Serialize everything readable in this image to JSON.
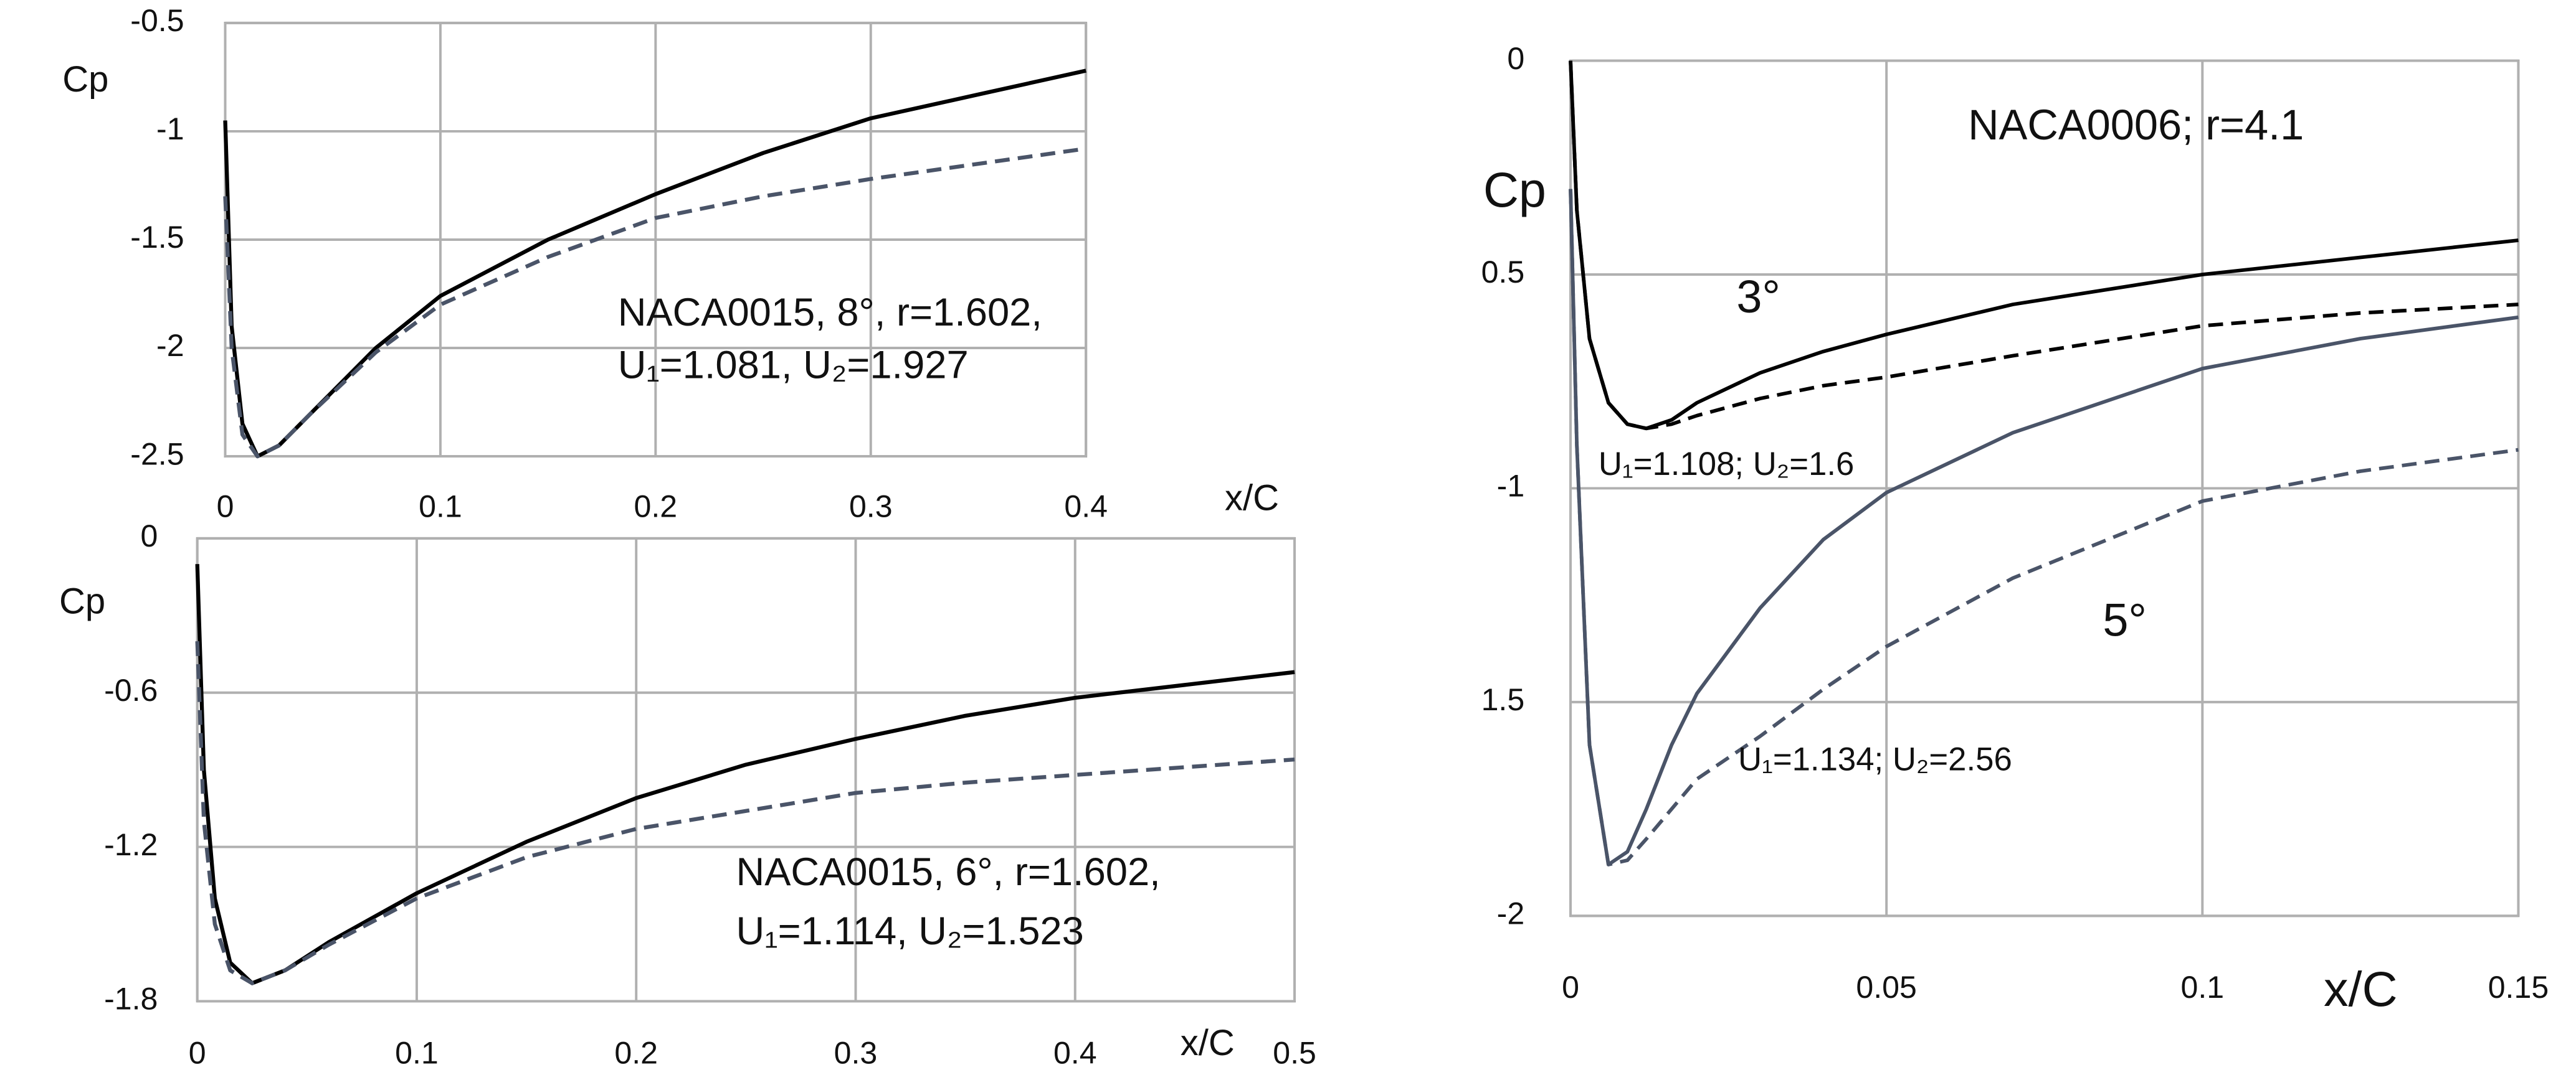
{
  "chart_data": [
    {
      "type": "line",
      "ylabel": "Cp",
      "xlabel": "x/C",
      "xlim": [
        0,
        0.4
      ],
      "xticks": [
        0,
        0.1,
        0.2,
        0.3,
        0.4
      ],
      "ylim": [
        -2.5,
        -0.5
      ],
      "yticks": [
        -2.5,
        -2,
        -1.5,
        -1,
        -0.5
      ],
      "grid": true,
      "annotations": [
        "NACA0015, 8°, r=1.602,",
        "U₁=1.081, U₂=1.927"
      ],
      "x": [
        0,
        0.003,
        0.008,
        0.015,
        0.025,
        0.04,
        0.07,
        0.1,
        0.15,
        0.2,
        0.25,
        0.3,
        0.35,
        0.4
      ],
      "series": [
        {
          "color": "#000000",
          "dashed": false,
          "values": [
            -0.95,
            -1.9,
            -2.35,
            -2.5,
            -2.45,
            -2.3,
            -2.0,
            -1.76,
            -1.5,
            -1.29,
            -1.1,
            -0.94,
            -0.83,
            -0.72
          ]
        },
        {
          "color": "#4a5468",
          "dashed": true,
          "values": [
            -1.3,
            -2.0,
            -2.4,
            -2.5,
            -2.45,
            -2.3,
            -2.02,
            -1.8,
            -1.58,
            -1.4,
            -1.3,
            -1.22,
            -1.15,
            -1.08
          ]
        }
      ]
    },
    {
      "type": "line",
      "ylabel": "Cp",
      "xlabel": "x/C",
      "xlim": [
        0,
        0.5
      ],
      "xticks": [
        0,
        0.1,
        0.2,
        0.3,
        0.4,
        0.5
      ],
      "ylim": [
        -1.8,
        0
      ],
      "yticks": [
        -1.8,
        -1.2,
        -0.6,
        0
      ],
      "grid": true,
      "annotations": [
        "NACA0015, 6°, r=1.602,",
        "U₁=1.114, U₂=1.523"
      ],
      "x": [
        0,
        0.003,
        0.008,
        0.015,
        0.025,
        0.04,
        0.06,
        0.1,
        0.15,
        0.2,
        0.25,
        0.3,
        0.35,
        0.4,
        0.45,
        0.5
      ],
      "series": [
        {
          "color": "#000000",
          "dashed": false,
          "values": [
            -0.1,
            -0.9,
            -1.4,
            -1.65,
            -1.73,
            -1.68,
            -1.57,
            -1.38,
            -1.18,
            -1.01,
            -0.88,
            -0.78,
            -0.69,
            -0.62,
            -0.57,
            -0.52
          ]
        },
        {
          "color": "#4a5468",
          "dashed": true,
          "values": [
            -0.4,
            -1.1,
            -1.5,
            -1.68,
            -1.73,
            -1.68,
            -1.58,
            -1.4,
            -1.24,
            -1.13,
            -1.06,
            -0.99,
            -0.95,
            -0.92,
            -0.89,
            -0.86
          ]
        }
      ]
    },
    {
      "type": "line",
      "ylabel": "Cp",
      "xlabel": "x/C",
      "xlim": [
        0,
        0.15
      ],
      "xticks": [
        0,
        0.05,
        0.1,
        0.15
      ],
      "ylim": [
        -2,
        0
      ],
      "yticks": [
        -2,
        {
          "value": -1.5,
          "label": "1.5"
        },
        -1,
        {
          "value": -0.5,
          "label": "0.5"
        },
        0
      ],
      "grid": true,
      "annotations": [
        "NACA0006; r=4.1",
        "3°",
        "U₁=1.108; U₂=1.6",
        "5°",
        "U₁=1.134; U₂=2.56"
      ],
      "x": [
        0,
        0.001,
        0.003,
        0.006,
        0.009,
        0.012,
        0.016,
        0.02,
        0.03,
        0.04,
        0.05,
        0.07,
        0.1,
        0.125,
        0.15
      ],
      "series": [
        {
          "color": "#000000",
          "dashed": false,
          "values": [
            0,
            -0.35,
            -0.65,
            -0.8,
            -0.85,
            -0.86,
            -0.84,
            -0.8,
            -0.73,
            -0.68,
            -0.64,
            -0.57,
            -0.5,
            -0.46,
            -0.42
          ]
        },
        {
          "color": "#000000",
          "dashed": true,
          "values": [
            0,
            -0.35,
            -0.65,
            -0.8,
            -0.85,
            -0.86,
            -0.85,
            -0.83,
            -0.79,
            -0.76,
            -0.74,
            -0.69,
            -0.62,
            -0.59,
            -0.57
          ]
        },
        {
          "color": "#4a5468",
          "dashed": false,
          "values": [
            -0.3,
            -0.9,
            -1.6,
            -1.88,
            -1.85,
            -1.75,
            -1.6,
            -1.48,
            -1.28,
            -1.12,
            -1.01,
            -0.87,
            -0.72,
            -0.65,
            -0.6
          ]
        },
        {
          "color": "#4a5468",
          "dashed": true,
          "values": [
            -0.3,
            -0.9,
            -1.6,
            -1.88,
            -1.87,
            -1.82,
            -1.75,
            -1.68,
            -1.58,
            -1.47,
            -1.37,
            -1.21,
            -1.03,
            -0.96,
            -0.91
          ]
        }
      ]
    }
  ]
}
